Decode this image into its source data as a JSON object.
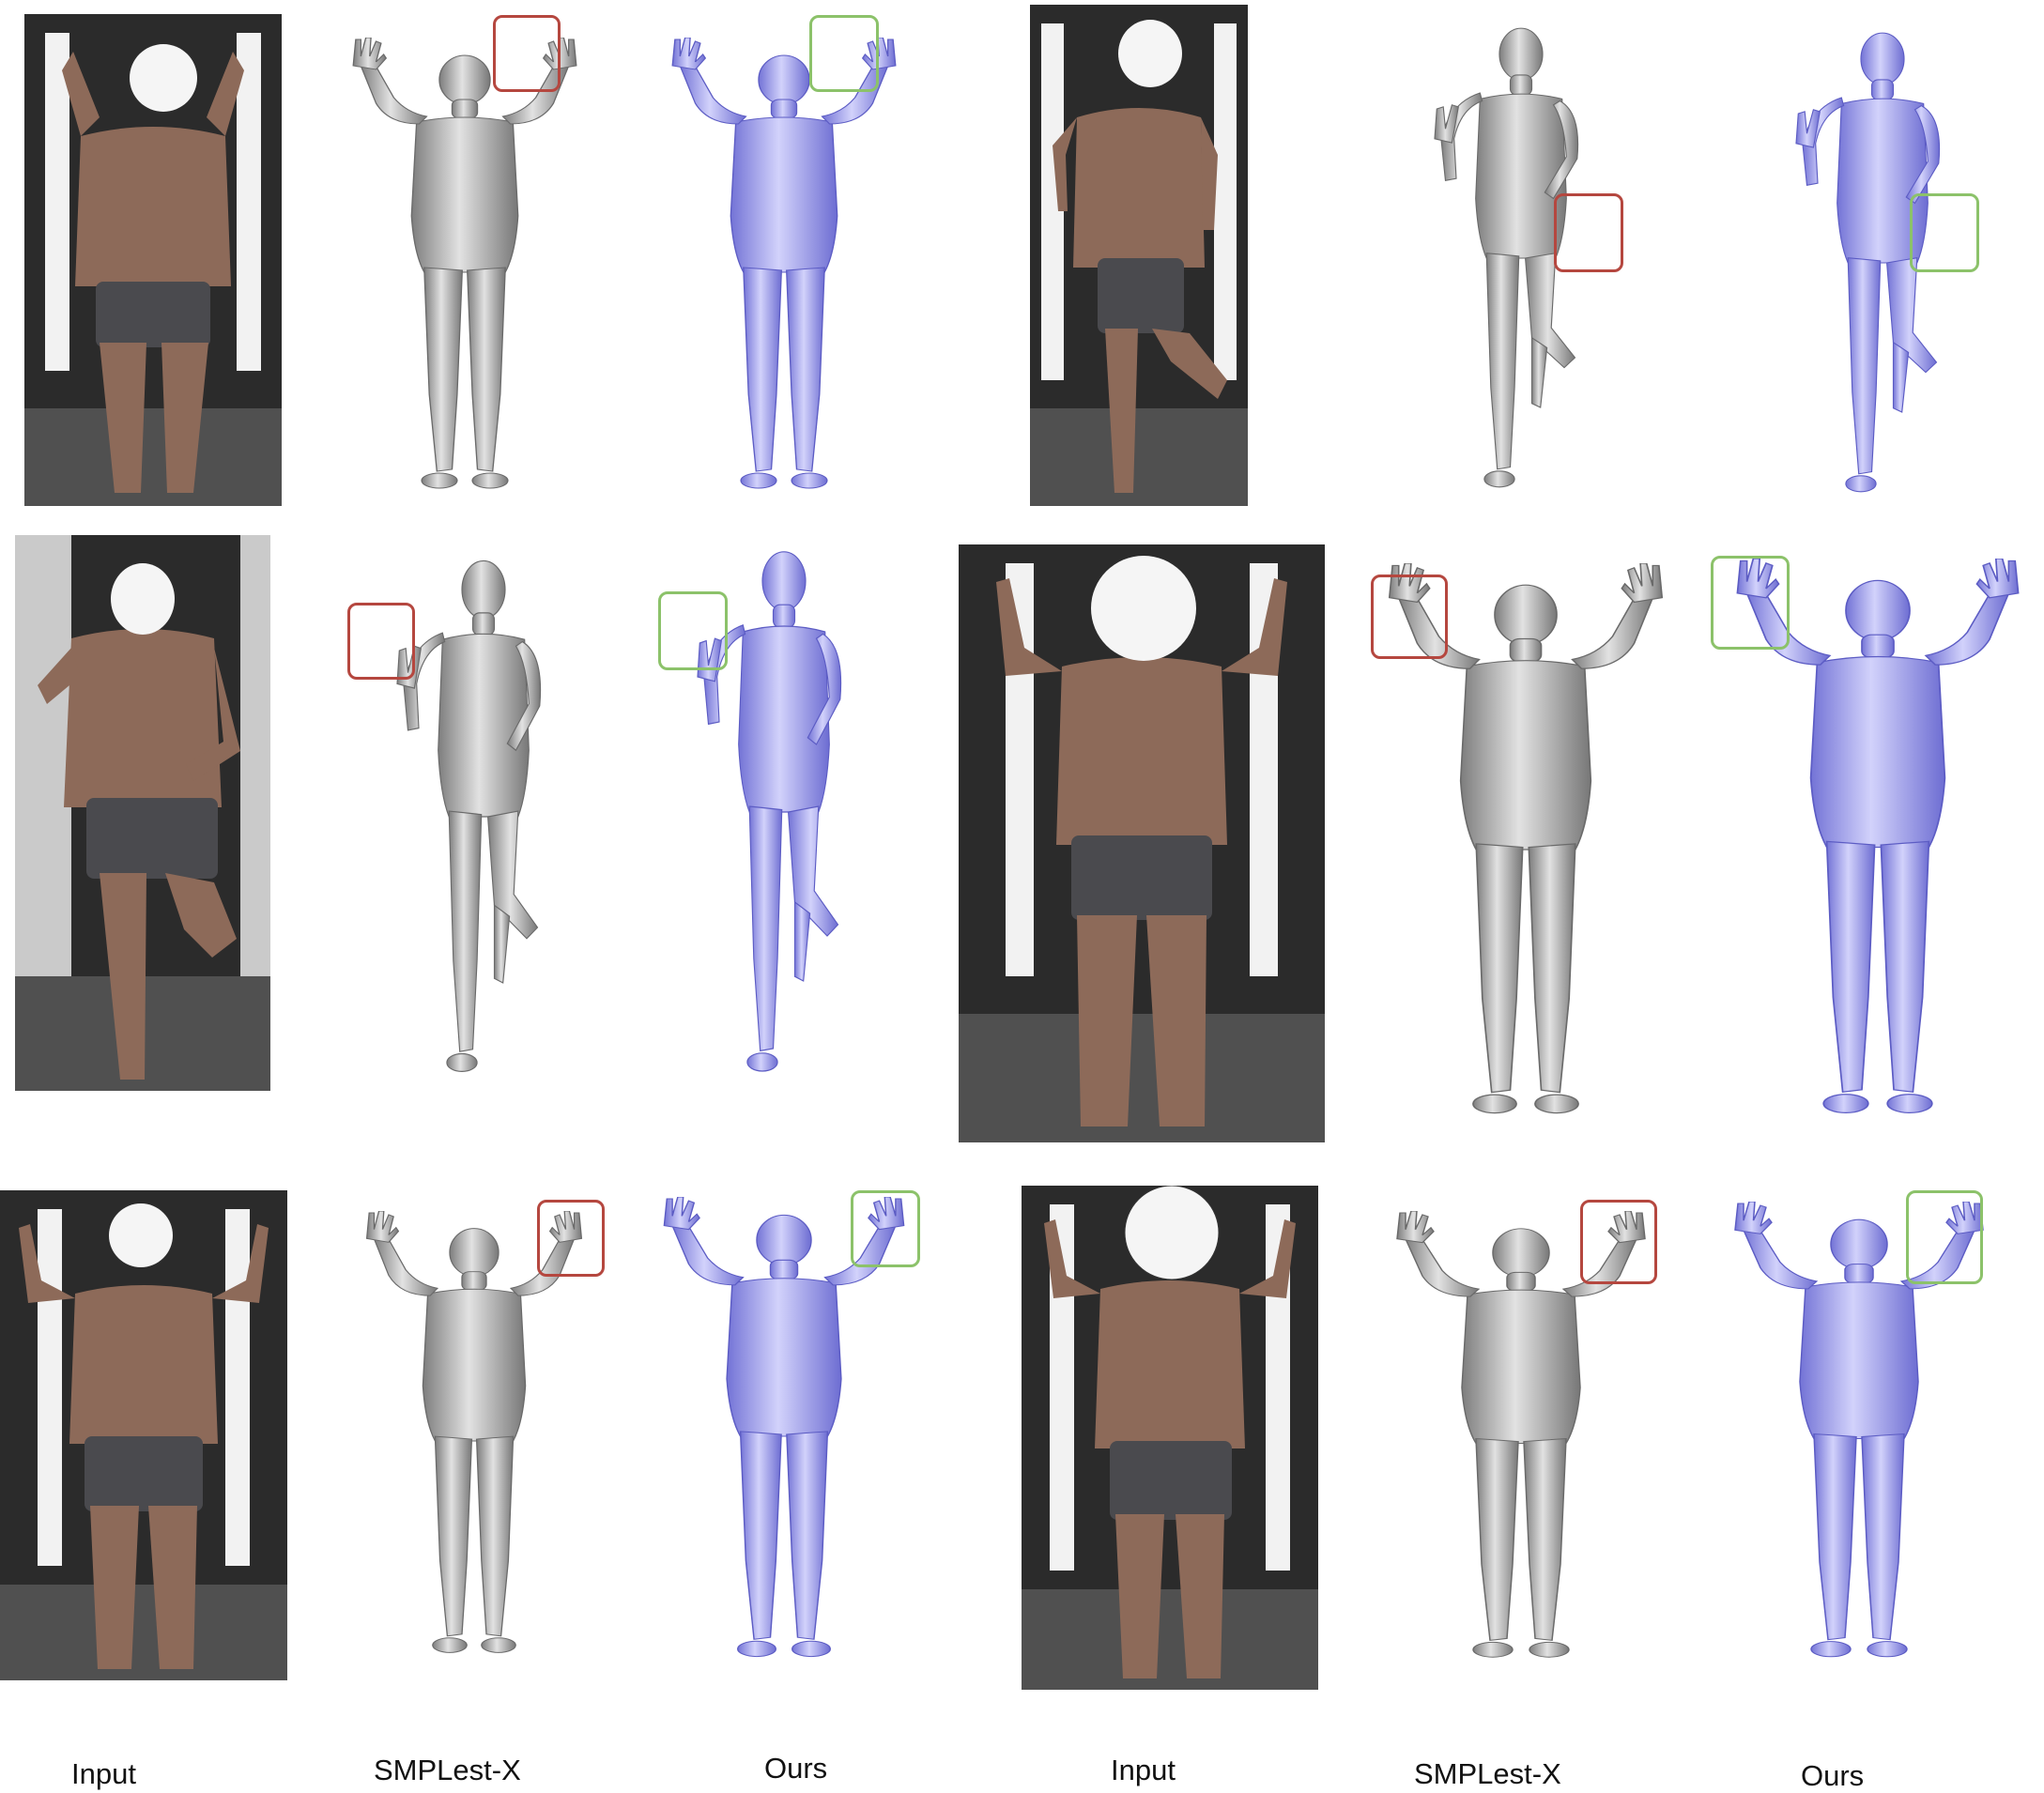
{
  "colors": {
    "mesh_baseline": "#9c9c9c",
    "mesh_baseline_light": "#dcdcdc",
    "mesh_ours": "#8f8fe6",
    "mesh_ours_light": "#c9c9f7",
    "box_baseline": "#b5473f",
    "box_ours": "#8cc26a",
    "photo_bg": "#2b2b2b",
    "photo_light_panel": "#f2f2f2",
    "skin": "#9a7563",
    "shorts": "#4a4a4e",
    "face_blur": "#f5f5f5"
  },
  "figure": {
    "rows": [
      {
        "pose": "arms-up-hands-open",
        "samples": [
          "left",
          "right"
        ]
      },
      {
        "pose": "one-leg-raised",
        "samples": [
          "left",
          "right"
        ]
      },
      {
        "pose": "arms-raised",
        "samples": [
          "left",
          "right"
        ]
      }
    ],
    "highlight_legend": {
      "baseline": "red-box",
      "ours": "green-box"
    }
  },
  "captions": {
    "input_left": "Input",
    "smplestx_left": "SMPLest-X",
    "ours_left": "Ours",
    "input_right": "Input",
    "smplestx_right": "SMPLest-X",
    "ours_right": "Ours"
  }
}
